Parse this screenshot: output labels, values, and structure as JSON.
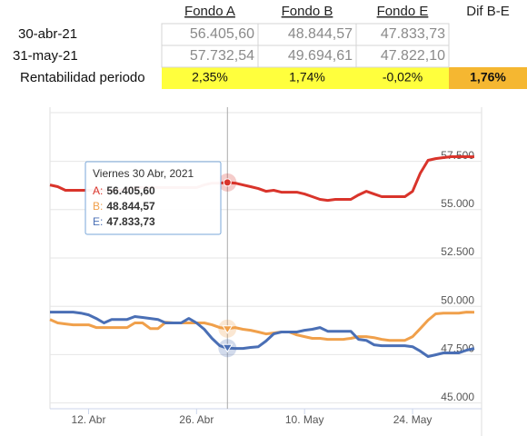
{
  "table": {
    "headers": [
      "Fondo A",
      "Fondo B",
      "Fondo E",
      "Dif B-E"
    ],
    "rows": [
      {
        "label": "30-abr-21",
        "cells": [
          "56.405,60",
          "48.844,57",
          "47.833,73"
        ]
      },
      {
        "label": "31-may-21",
        "cells": [
          "57.732,54",
          "49.694,61",
          "47.822,10"
        ]
      },
      {
        "label": "Rentabilidad periodo",
        "cells": [
          "2,35%",
          "1,74%",
          "-0,02%",
          "1,76%"
        ]
      }
    ]
  },
  "chart_data": {
    "type": "line",
    "categories": [
      null,
      null,
      null,
      null,
      null,
      "12. Abr",
      null,
      null,
      null,
      null,
      null,
      null,
      null,
      null,
      null,
      null,
      null,
      null,
      null,
      "26. Abr",
      null,
      null,
      null,
      null,
      null,
      null,
      null,
      null,
      null,
      null,
      null,
      null,
      null,
      "10. May",
      null,
      null,
      null,
      null,
      null,
      null,
      null,
      null,
      null,
      null,
      null,
      null,
      null,
      "24. May",
      null,
      null,
      null,
      null,
      null,
      null,
      null,
      null
    ],
    "series": [
      {
        "color": "#d9342b",
        "values": [
          56280,
          56190,
          56000,
          56000,
          56000,
          56000,
          56000,
          56000,
          56000,
          56000,
          56090,
          56140,
          56140,
          56140,
          56140,
          56140,
          56140,
          56140,
          56140,
          56140,
          56280,
          56370,
          56370,
          56405.6,
          56370,
          56280,
          56190,
          56090,
          55950,
          56000,
          55900,
          55900,
          55900,
          55810,
          55670,
          55530,
          55480,
          55530,
          55530,
          55530,
          55760,
          55950,
          55810,
          55670,
          55670,
          55670,
          55670,
          55950,
          56890,
          57550,
          57640,
          57690,
          57740,
          57740,
          57740,
          57732.54
        ]
      },
      {
        "color": "#f0a04b",
        "values": [
          49320,
          49140,
          49090,
          49040,
          49040,
          49040,
          48900,
          48900,
          48900,
          48900,
          48900,
          49140,
          49140,
          48850,
          48850,
          49180,
          49140,
          49140,
          49140,
          49140,
          49140,
          49040,
          48900,
          48844.57,
          48900,
          48810,
          48760,
          48670,
          48570,
          48620,
          48670,
          48670,
          48520,
          48430,
          48340,
          48340,
          48290,
          48290,
          48290,
          48340,
          48430,
          48430,
          48380,
          48290,
          48240,
          48240,
          48240,
          48430,
          48850,
          49280,
          49610,
          49650,
          49650,
          49650,
          49700,
          49694.61
        ]
      },
      {
        "color": "#4a6fb5",
        "values": [
          49700,
          49700,
          49700,
          49700,
          49650,
          49560,
          49370,
          49140,
          49320,
          49320,
          49320,
          49470,
          49420,
          49370,
          49320,
          49140,
          49140,
          49140,
          49370,
          49140,
          48810,
          48340,
          47960,
          47833.73,
          47820,
          47820,
          47870,
          47910,
          48200,
          48570,
          48670,
          48670,
          48670,
          48760,
          48810,
          48900,
          48710,
          48710,
          48710,
          48710,
          48290,
          48240,
          48010,
          47960,
          47960,
          47960,
          47960,
          47910,
          47680,
          47400,
          47490,
          47590,
          47590,
          47590,
          47730,
          47822.1
        ]
      }
    ],
    "ylim": [
      44700,
      60300
    ],
    "yticks": [
      {
        "value": 45000,
        "label": "45.000"
      },
      {
        "value": 47500,
        "label": "47.500"
      },
      {
        "value": 50000,
        "label": "50.000"
      },
      {
        "value": 52500,
        "label": "52.500"
      },
      {
        "value": 55000,
        "label": "55.000"
      },
      {
        "value": 57500,
        "label": "57.500"
      }
    ],
    "grid": true,
    "tooltip": {
      "title": "Viernes 30 Abr, 2021",
      "items": [
        {
          "label": "A:",
          "value": "56.405,60"
        },
        {
          "label": "B:",
          "value": "48.844,57"
        },
        {
          "label": "E:",
          "value": "47.833,73"
        }
      ]
    }
  }
}
